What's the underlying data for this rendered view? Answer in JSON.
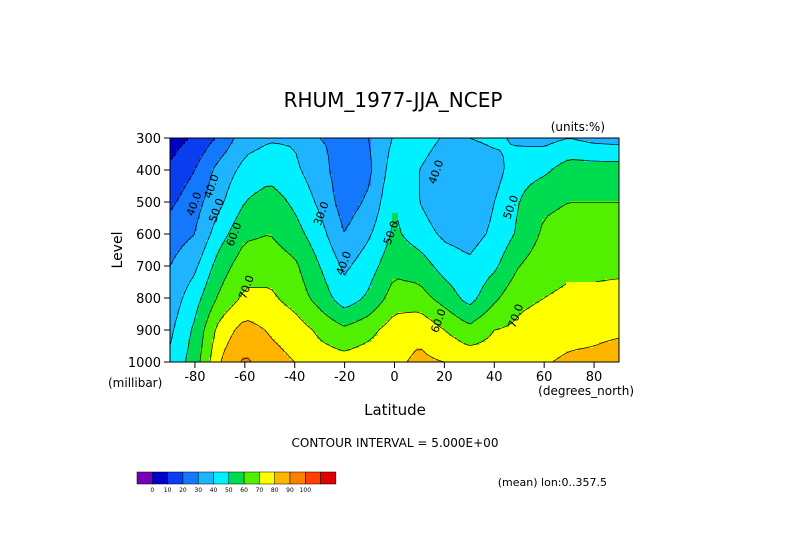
{
  "chart_data": {
    "type": "heatmap",
    "title": "RHUM_1977-JJA_NCEP",
    "units_label": "(units:%)",
    "xlabel": "Latitude",
    "x_units": "(degrees_north)",
    "ylabel": "Level",
    "y_units": "(millibar)",
    "xlim": [
      -90,
      90
    ],
    "ylim": [
      1000,
      300
    ],
    "x_ticks": [
      -80,
      -60,
      -40,
      -20,
      0,
      20,
      40,
      60,
      80
    ],
    "x_tick_labels": [
      "-80",
      "-60",
      "-40",
      "-20",
      "0",
      "20",
      "40",
      "60",
      "80"
    ],
    "y_ticks": [
      300,
      400,
      500,
      600,
      700,
      800,
      900,
      1000
    ],
    "y_tick_labels": [
      "300",
      "400",
      "500",
      "600",
      "700",
      "800",
      "900",
      "1000"
    ],
    "contour_interval_text": "CONTOUR INTERVAL = 5.000E+00",
    "footer_text": "(mean) lon:0..357.5",
    "contour_labels": [
      {
        "text": "40.0",
        "lat": -72,
        "lev": 455
      },
      {
        "text": "40.0",
        "lat": -79,
        "lev": 510
      },
      {
        "text": "50.0",
        "lat": -70,
        "lev": 530
      },
      {
        "text": "60.0",
        "lat": -63,
        "lev": 605
      },
      {
        "text": "70.0",
        "lat": -58,
        "lev": 770
      },
      {
        "text": "30.0",
        "lat": -28,
        "lev": 540
      },
      {
        "text": "40.0",
        "lat": -19,
        "lev": 695
      },
      {
        "text": "50.0",
        "lat": 0,
        "lev": 600
      },
      {
        "text": "40.0",
        "lat": 18,
        "lev": 410
      },
      {
        "text": "50.0",
        "lat": 48,
        "lev": 520
      },
      {
        "text": "60.0",
        "lat": 19,
        "lev": 875
      },
      {
        "text": "70.0",
        "lat": 50,
        "lev": 860
      }
    ],
    "levels": [
      300,
      400,
      500,
      600,
      700,
      800,
      900,
      1000
    ],
    "lats": [
      -90,
      -80,
      -70,
      -60,
      -50,
      -40,
      -30,
      -20,
      -10,
      0,
      10,
      20,
      30,
      40,
      50,
      60,
      70,
      80,
      90
    ],
    "values": [
      [
        5,
        12,
        22,
        36,
        39,
        39,
        30,
        28,
        30,
        41,
        45,
        39,
        40,
        42,
        38,
        37,
        40,
        37,
        36
      ],
      [
        12,
        20,
        34,
        43,
        46,
        42,
        34,
        24,
        28,
        46,
        40,
        33,
        33,
        36,
        46,
        48,
        55,
        55,
        55
      ],
      [
        18,
        26,
        38,
        50,
        55,
        48,
        38,
        25,
        32,
        50,
        40,
        32,
        32,
        40,
        50,
        58,
        60,
        60,
        60
      ],
      [
        25,
        30,
        46,
        58,
        60,
        54,
        44,
        30,
        39,
        52,
        45,
        38,
        36,
        42,
        52,
        62,
        64,
        64,
        64
      ],
      [
        30,
        38,
        55,
        66,
        66,
        62,
        50,
        38,
        46,
        57,
        55,
        46,
        42,
        48,
        60,
        66,
        68,
        68,
        68
      ],
      [
        34,
        46,
        62,
        72,
        72,
        66,
        56,
        44,
        52,
        65,
        64,
        56,
        46,
        58,
        68,
        70,
        72,
        72,
        73
      ],
      [
        38,
        52,
        74,
        84,
        79,
        75,
        68,
        62,
        67,
        75,
        78,
        70,
        63,
        70,
        72,
        74,
        76,
        77,
        78
      ],
      [
        42,
        55,
        80,
        92,
        84,
        80,
        75,
        74,
        76,
        78,
        82,
        80,
        77,
        75,
        78,
        79,
        82,
        83,
        86
      ]
    ],
    "colorbar": {
      "colors": [
        "#7800b4",
        "#0000c8",
        "#0a3cf0",
        "#1478ff",
        "#1eb4ff",
        "#00f0ff",
        "#00dc50",
        "#50f000",
        "#ffff00",
        "#ffb400",
        "#ff8000",
        "#ff4000",
        "#e10000"
      ],
      "labels": [
        "0",
        "10",
        "20",
        "30",
        "40",
        "50",
        "60",
        "70",
        "80",
        "90",
        "100"
      ]
    },
    "grid": false
  }
}
